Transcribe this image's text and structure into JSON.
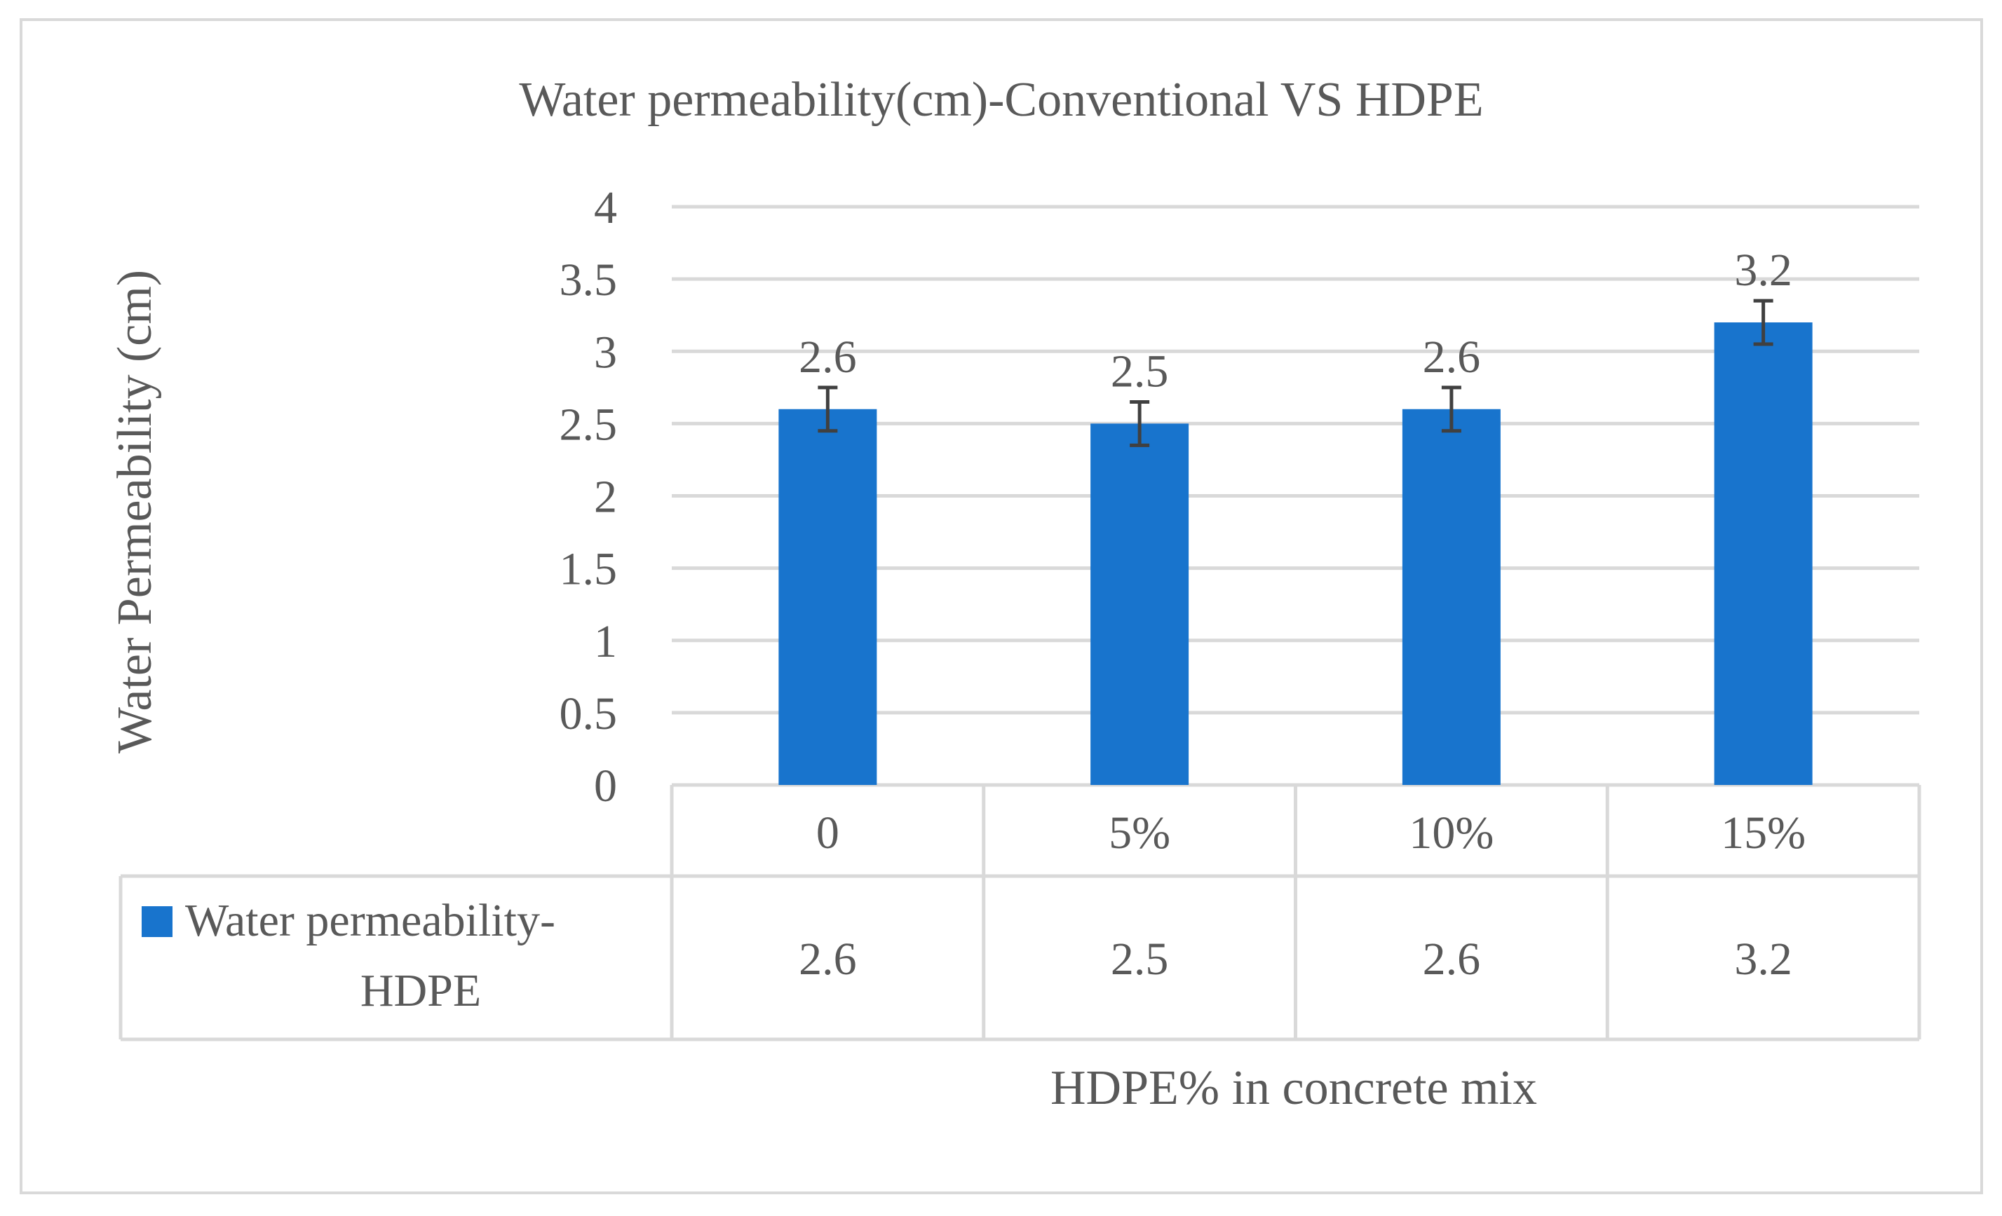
{
  "chart_data": {
    "type": "bar",
    "title": "Water permeability(cm)-Conventional VS HDPE",
    "xlabel": "HDPE% in concrete mix",
    "ylabel": "Water Permeability (cm)",
    "categories": [
      "0",
      "5%",
      "10%",
      "15%"
    ],
    "ylim": [
      0,
      4
    ],
    "yticks": [
      "0",
      "0.5",
      "1",
      "1.5",
      "2",
      "2.5",
      "3",
      "3.5",
      "4"
    ],
    "grid": true,
    "series": [
      {
        "name": "Water permeability-HDPE",
        "legend_lines": [
          "Water permeability-",
          "HDPE"
        ],
        "values": [
          2.6,
          2.5,
          2.6,
          3.2
        ],
        "error": [
          0.15,
          0.15,
          0.15,
          0.15
        ],
        "data_labels": [
          "2.6",
          "2.5",
          "2.6",
          "3.2"
        ],
        "table_values": [
          "2.6",
          "2.5",
          "2.6",
          "3.2"
        ],
        "color": "#1874CD"
      }
    ],
    "legend": "data-table-left"
  }
}
